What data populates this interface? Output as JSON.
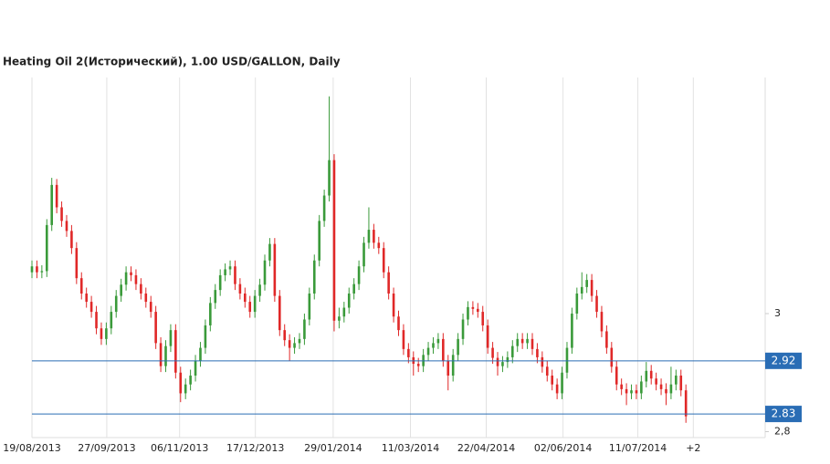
{
  "chart_data": {
    "type": "candlestick",
    "title": "Heating Oil 2(Исторический), 1.00 USD/GALLON, Daily",
    "up_color": "#3a9a3a",
    "down_color": "#e02828",
    "level_color": "#2a6db5",
    "grid": true,
    "xlim": [
      0,
      148
    ],
    "ylim": [
      2.79,
      3.4
    ],
    "xticks": [
      {
        "value": 0,
        "label": "19/08/2013"
      },
      {
        "value": 15.1,
        "label": "27/09/2013"
      },
      {
        "value": 29.8,
        "label": "06/11/2013"
      },
      {
        "value": 45.1,
        "label": "17/12/2013"
      },
      {
        "value": 60.8,
        "label": "29/01/2014"
      },
      {
        "value": 76.4,
        "label": "11/03/2014"
      },
      {
        "value": 91.7,
        "label": "22/04/2014"
      },
      {
        "value": 107.2,
        "label": "02/06/2014"
      },
      {
        "value": 122.3,
        "label": "11/07/2014"
      },
      {
        "value": 133.5,
        "label": "+2"
      }
    ],
    "yticks": [
      3,
      {
        "value": 2.8,
        "label": "2,8"
      }
    ],
    "levels": [
      2.92,
      2.83
    ],
    "ohlc": [
      [
        3.07,
        3.09,
        3.06,
        3.08
      ],
      [
        3.08,
        3.09,
        3.06,
        3.07
      ],
      [
        3.07,
        3.082,
        3.06,
        3.072
      ],
      [
        3.072,
        3.16,
        3.062,
        3.15
      ],
      [
        3.15,
        3.23,
        3.14,
        3.218
      ],
      [
        3.218,
        3.228,
        3.17,
        3.18
      ],
      [
        3.18,
        3.19,
        3.147,
        3.157
      ],
      [
        3.157,
        3.167,
        3.13,
        3.14
      ],
      [
        3.14,
        3.15,
        3.101,
        3.111
      ],
      [
        3.111,
        3.121,
        3.05,
        3.06
      ],
      [
        3.06,
        3.07,
        3.024,
        3.034
      ],
      [
        3.034,
        3.044,
        3.01,
        3.02
      ],
      [
        3.02,
        3.03,
        2.993,
        3.003
      ],
      [
        3.003,
        3.013,
        2.965,
        2.975
      ],
      [
        2.975,
        2.985,
        2.947,
        2.957
      ],
      [
        2.957,
        2.985,
        2.947,
        2.975
      ],
      [
        2.975,
        3.013,
        2.965,
        3.003
      ],
      [
        3.003,
        3.04,
        2.993,
        3.03
      ],
      [
        3.03,
        3.059,
        3.02,
        3.049
      ],
      [
        3.049,
        3.08,
        3.039,
        3.07
      ],
      [
        3.07,
        3.08,
        3.055,
        3.065
      ],
      [
        3.065,
        3.075,
        3.04,
        3.05
      ],
      [
        3.05,
        3.06,
        3.024,
        3.034
      ],
      [
        3.034,
        3.044,
        3.01,
        3.02
      ],
      [
        3.02,
        3.03,
        2.993,
        3.003
      ],
      [
        3.003,
        3.013,
        2.94,
        2.95
      ],
      [
        2.95,
        2.96,
        2.901,
        2.911
      ],
      [
        2.911,
        2.955,
        2.901,
        2.945
      ],
      [
        2.945,
        2.982,
        2.935,
        2.972
      ],
      [
        2.972,
        2.982,
        2.89,
        2.9
      ],
      [
        2.9,
        2.91,
        2.85,
        2.865
      ],
      [
        2.865,
        2.89,
        2.855,
        2.88
      ],
      [
        2.88,
        2.905,
        2.87,
        2.895
      ],
      [
        2.895,
        2.93,
        2.885,
        2.92
      ],
      [
        2.92,
        2.952,
        2.91,
        2.942
      ],
      [
        2.942,
        2.99,
        2.932,
        2.98
      ],
      [
        2.98,
        3.028,
        2.97,
        3.018
      ],
      [
        3.018,
        3.05,
        3.008,
        3.04
      ],
      [
        3.04,
        3.075,
        3.03,
        3.065
      ],
      [
        3.065,
        3.085,
        3.055,
        3.075
      ],
      [
        3.075,
        3.09,
        3.065,
        3.08
      ],
      [
        3.08,
        3.09,
        3.04,
        3.05
      ],
      [
        3.05,
        3.06,
        3.024,
        3.034
      ],
      [
        3.034,
        3.044,
        3.01,
        3.02
      ],
      [
        3.02,
        3.03,
        2.993,
        3.003
      ],
      [
        3.003,
        3.04,
        2.993,
        3.03
      ],
      [
        3.03,
        3.059,
        3.02,
        3.049
      ],
      [
        3.049,
        3.1,
        3.039,
        3.09
      ],
      [
        3.09,
        3.128,
        3.08,
        3.118
      ],
      [
        3.118,
        3.128,
        3.02,
        3.03
      ],
      [
        3.03,
        3.04,
        2.962,
        2.972
      ],
      [
        2.972,
        2.982,
        2.945,
        2.955
      ],
      [
        2.955,
        2.965,
        2.92,
        2.942
      ],
      [
        2.942,
        2.96,
        2.932,
        2.95
      ],
      [
        2.95,
        2.967,
        2.94,
        2.957
      ],
      [
        2.957,
        3.0,
        2.947,
        2.99
      ],
      [
        2.99,
        3.044,
        2.98,
        3.034
      ],
      [
        3.034,
        3.1,
        3.024,
        3.09
      ],
      [
        3.09,
        3.167,
        3.08,
        3.157
      ],
      [
        3.157,
        3.21,
        3.147,
        3.2
      ],
      [
        3.2,
        3.368,
        3.19,
        3.26
      ],
      [
        3.26,
        3.27,
        2.97,
        2.988
      ],
      [
        2.988,
        3.01,
        2.975,
        2.995
      ],
      [
        2.995,
        3.02,
        2.985,
        3.01
      ],
      [
        3.01,
        3.044,
        3.0,
        3.034
      ],
      [
        3.034,
        3.06,
        3.024,
        3.05
      ],
      [
        3.05,
        3.09,
        3.04,
        3.08
      ],
      [
        3.08,
        3.13,
        3.07,
        3.12
      ],
      [
        3.12,
        3.18,
        3.11,
        3.142
      ],
      [
        3.142,
        3.152,
        3.11,
        3.12
      ],
      [
        3.12,
        3.13,
        3.101,
        3.111
      ],
      [
        3.111,
        3.121,
        3.06,
        3.07
      ],
      [
        3.07,
        3.08,
        3.024,
        3.034
      ],
      [
        3.034,
        3.044,
        2.985,
        2.995
      ],
      [
        2.995,
        3.005,
        2.962,
        2.972
      ],
      [
        2.972,
        2.982,
        2.93,
        2.94
      ],
      [
        2.94,
        2.95,
        2.916,
        2.926
      ],
      [
        2.926,
        2.936,
        2.895,
        2.915
      ],
      [
        2.915,
        2.925,
        2.901,
        2.911
      ],
      [
        2.911,
        2.94,
        2.901,
        2.93
      ],
      [
        2.93,
        2.952,
        2.92,
        2.942
      ],
      [
        2.942,
        2.96,
        2.932,
        2.95
      ],
      [
        2.95,
        2.967,
        2.94,
        2.957
      ],
      [
        2.957,
        2.967,
        2.91,
        2.92
      ],
      [
        2.92,
        2.93,
        2.87,
        2.895
      ],
      [
        2.895,
        2.94,
        2.885,
        2.93
      ],
      [
        2.93,
        2.967,
        2.92,
        2.957
      ],
      [
        2.957,
        3.0,
        2.947,
        2.99
      ],
      [
        2.99,
        3.021,
        2.98,
        3.011
      ],
      [
        3.011,
        3.021,
        2.998,
        3.008
      ],
      [
        3.008,
        3.018,
        2.993,
        3.003
      ],
      [
        3.003,
        3.013,
        2.97,
        2.98
      ],
      [
        2.98,
        2.99,
        2.932,
        2.942
      ],
      [
        2.942,
        2.952,
        2.915,
        2.925
      ],
      [
        2.925,
        2.935,
        2.895,
        2.911
      ],
      [
        2.911,
        2.928,
        2.901,
        2.918
      ],
      [
        2.918,
        2.936,
        2.908,
        2.926
      ],
      [
        2.926,
        2.955,
        2.916,
        2.945
      ],
      [
        2.945,
        2.967,
        2.935,
        2.957
      ],
      [
        2.957,
        2.967,
        2.94,
        2.95
      ],
      [
        2.95,
        2.967,
        2.94,
        2.957
      ],
      [
        2.957,
        2.967,
        2.93,
        2.94
      ],
      [
        2.94,
        2.95,
        2.916,
        2.926
      ],
      [
        2.926,
        2.936,
        2.9,
        2.91
      ],
      [
        2.91,
        2.92,
        2.885,
        2.895
      ],
      [
        2.895,
        2.905,
        2.87,
        2.88
      ],
      [
        2.88,
        2.89,
        2.855,
        2.865
      ],
      [
        2.865,
        2.91,
        2.855,
        2.9
      ],
      [
        2.9,
        2.952,
        2.89,
        2.942
      ],
      [
        2.942,
        3.01,
        2.932,
        3.0
      ],
      [
        3.0,
        3.044,
        2.99,
        3.034
      ],
      [
        3.034,
        3.07,
        3.024,
        3.045
      ],
      [
        3.045,
        3.067,
        3.035,
        3.057
      ],
      [
        3.057,
        3.067,
        3.02,
        3.03
      ],
      [
        3.03,
        3.04,
        2.993,
        3.003
      ],
      [
        3.003,
        3.013,
        2.96,
        2.97
      ],
      [
        2.97,
        2.98,
        2.932,
        2.942
      ],
      [
        2.942,
        2.952,
        2.9,
        2.91
      ],
      [
        2.91,
        2.92,
        2.87,
        2.88
      ],
      [
        2.88,
        2.89,
        2.862,
        2.872
      ],
      [
        2.872,
        2.882,
        2.845,
        2.865
      ],
      [
        2.865,
        2.88,
        2.855,
        2.87
      ],
      [
        2.87,
        2.88,
        2.855,
        2.865
      ],
      [
        2.865,
        2.895,
        2.855,
        2.885
      ],
      [
        2.885,
        2.918,
        2.875,
        2.903
      ],
      [
        2.903,
        2.913,
        2.88,
        2.89
      ],
      [
        2.89,
        2.9,
        2.87,
        2.88
      ],
      [
        2.88,
        2.89,
        2.862,
        2.872
      ],
      [
        2.872,
        2.882,
        2.845,
        2.865
      ],
      [
        2.865,
        2.91,
        2.855,
        2.88
      ],
      [
        2.88,
        2.905,
        2.87,
        2.895
      ],
      [
        2.895,
        2.905,
        2.86,
        2.87
      ],
      [
        2.87,
        2.88,
        2.815,
        2.826
      ]
    ]
  }
}
